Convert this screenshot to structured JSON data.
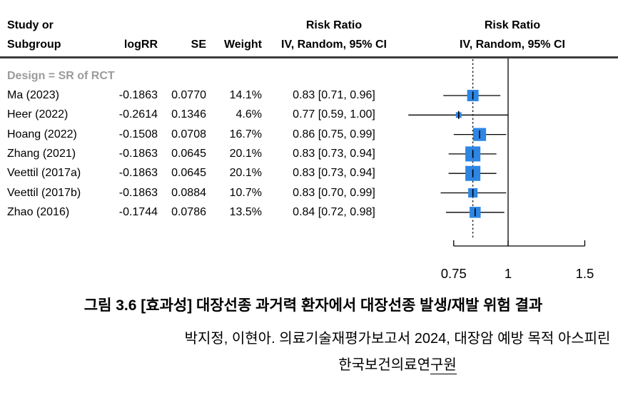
{
  "table": {
    "header": {
      "study_line1": "Study or",
      "study_line2": "Subgroup",
      "logrr": "logRR",
      "se": "SE",
      "weight": "Weight",
      "risk_ratio": "Risk Ratio",
      "method_ci": "IV, Random, 95% CI"
    },
    "subgroup_label": "Design = SR of RCT"
  },
  "chart_data": {
    "type": "forest",
    "scale": "log",
    "effect_measure": "Risk Ratio",
    "model": "IV, Random, 95% CI",
    "subgroup": "Design = SR of RCT",
    "studies": [
      {
        "label": "Ma (2023)",
        "logrr": "-0.1863",
        "se": "0.0770",
        "weight": "14.1%",
        "weight_pct": 14.1,
        "rr": 0.83,
        "ci_low": 0.71,
        "ci_high": 0.96,
        "ci_text": "0.83 [0.71, 0.96]"
      },
      {
        "label": "Heer (2022)",
        "logrr": "-0.2614",
        "se": "0.1346",
        "weight": "4.6%",
        "weight_pct": 4.6,
        "rr": 0.77,
        "ci_low": 0.59,
        "ci_high": 1.0,
        "ci_text": "0.77 [0.59, 1.00]"
      },
      {
        "label": "Hoang (2022)",
        "logrr": "-0.1508",
        "se": "0.0708",
        "weight": "16.7%",
        "weight_pct": 16.7,
        "rr": 0.86,
        "ci_low": 0.75,
        "ci_high": 0.99,
        "ci_text": "0.86 [0.75, 0.99]"
      },
      {
        "label": "Zhang (2021)",
        "logrr": "-0.1863",
        "se": "0.0645",
        "weight": "20.1%",
        "weight_pct": 20.1,
        "rr": 0.83,
        "ci_low": 0.73,
        "ci_high": 0.94,
        "ci_text": "0.83 [0.73, 0.94]"
      },
      {
        "label": "Veettil (2017a)",
        "logrr": "-0.1863",
        "se": "0.0645",
        "weight": "20.1%",
        "weight_pct": 20.1,
        "rr": 0.83,
        "ci_low": 0.73,
        "ci_high": 0.94,
        "ci_text": "0.83 [0.73, 0.94]"
      },
      {
        "label": "Veettil (2017b)",
        "logrr": "-0.1863",
        "se": "0.0884",
        "weight": "10.7%",
        "weight_pct": 10.7,
        "rr": 0.83,
        "ci_low": 0.7,
        "ci_high": 0.99,
        "ci_text": "0.83 [0.70, 0.99]"
      },
      {
        "label": "Zhao (2016)",
        "logrr": "-0.1744",
        "se": "0.0786",
        "weight": "13.5%",
        "weight_pct": 13.5,
        "rr": 0.84,
        "ci_low": 0.72,
        "ci_high": 0.98,
        "ci_text": "0.84 [0.72, 0.98]"
      }
    ],
    "axis": {
      "ticks": [
        0.75,
        1,
        1.5
      ],
      "tick_labels": [
        "0.75",
        "1",
        "1.5"
      ],
      "null_line": 1,
      "pooled_estimate": 0.83
    },
    "colors": {
      "marker": "#2d86e3",
      "subgroup_label": "#9b9b9b",
      "line": "#000000",
      "header_rule": "#3d3d3d"
    }
  },
  "caption": {
    "figure": "그림 3.6 [효과성] 대장선종 과거력 환자에서 대장선종 발생/재발 위험 결과"
  },
  "citation": {
    "line1": "박지정, 이현아. 의료기술재평가보고서 2024, 대장암 예방 목적 아스피린",
    "publisher_main": "한국보건의료연",
    "publisher_underlined": "구원"
  }
}
